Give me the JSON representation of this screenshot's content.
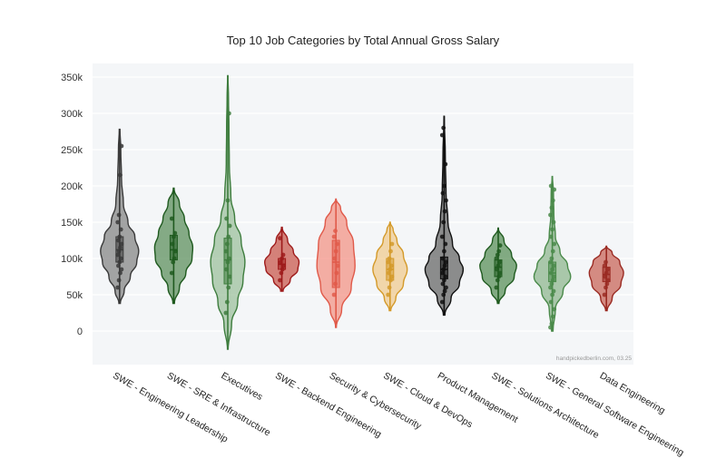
{
  "chart_data": {
    "type": "violin",
    "title": "Top 10 Job Categories by Total Annual Gross Salary",
    "xlabel": "",
    "ylabel": "",
    "ylim": [
      -45000,
      370000
    ],
    "yticks": [
      0,
      50000,
      100000,
      150000,
      200000,
      250000,
      300000,
      350000
    ],
    "ytick_labels": [
      "0",
      "50k",
      "100k",
      "150k",
      "200k",
      "250k",
      "300k",
      "350k"
    ],
    "grid": true,
    "legend": "none",
    "credit": "handpickedberlin.com, 03.25",
    "categories": [
      {
        "name": "SWE - Engineering Leadership",
        "color": "#3a3a3a",
        "fill": "#6f6f6f",
        "range": [
          38000,
          278000
        ],
        "q1": 95000,
        "median": 112000,
        "q3": 130000,
        "profile": [
          [
            38000,
            0.02
          ],
          [
            55000,
            0.12
          ],
          [
            75000,
            0.28
          ],
          [
            95000,
            0.45
          ],
          [
            110000,
            0.5
          ],
          [
            130000,
            0.4
          ],
          [
            150000,
            0.22
          ],
          [
            175000,
            0.1
          ],
          [
            210000,
            0.05
          ],
          [
            250000,
            0.03
          ],
          [
            278000,
            0.01
          ]
        ],
        "points": [
          60000,
          70000,
          80000,
          85000,
          90000,
          95000,
          100000,
          105000,
          110000,
          115000,
          120000,
          125000,
          130000,
          140000,
          150000,
          160000,
          215000,
          255000
        ]
      },
      {
        "name": "SWE - SRE & Infrastructure",
        "color": "#1f5a1f",
        "fill": "#3f7a3f",
        "range": [
          38000,
          197000
        ],
        "q1": 98000,
        "median": 112000,
        "q3": 132000,
        "profile": [
          [
            38000,
            0.02
          ],
          [
            60000,
            0.15
          ],
          [
            80000,
            0.32
          ],
          [
            100000,
            0.48
          ],
          [
            115000,
            0.5
          ],
          [
            135000,
            0.4
          ],
          [
            155000,
            0.28
          ],
          [
            175000,
            0.15
          ],
          [
            197000,
            0.01
          ]
        ],
        "points": [
          80000,
          95000,
          100000,
          110000,
          120000,
          130000,
          135000,
          155000
        ]
      },
      {
        "name": "Executives",
        "color": "#3e7d3e",
        "fill": "#8ab48a",
        "range": [
          -25000,
          352000
        ],
        "q1": 65000,
        "median": 98000,
        "q3": 128000,
        "profile": [
          [
            -25000,
            0.01
          ],
          [
            10000,
            0.1
          ],
          [
            40000,
            0.26
          ],
          [
            70000,
            0.4
          ],
          [
            95000,
            0.45
          ],
          [
            125000,
            0.35
          ],
          [
            155000,
            0.18
          ],
          [
            185000,
            0.08
          ],
          [
            230000,
            0.04
          ],
          [
            280000,
            0.03
          ],
          [
            320000,
            0.02
          ],
          [
            352000,
            0.005
          ]
        ],
        "points": [
          25000,
          40000,
          60000,
          75000,
          85000,
          95000,
          100000,
          110000,
          120000,
          130000,
          145000,
          155000,
          180000,
          300000
        ]
      },
      {
        "name": "SWE - Backend Engineering",
        "color": "#9e1a1a",
        "fill": "#c0392b",
        "range": [
          55000,
          143000
        ],
        "q1": 85000,
        "median": 92000,
        "q3": 100000,
        "profile": [
          [
            55000,
            0.03
          ],
          [
            70000,
            0.22
          ],
          [
            85000,
            0.42
          ],
          [
            95000,
            0.45
          ],
          [
            110000,
            0.3
          ],
          [
            125000,
            0.15
          ],
          [
            143000,
            0.01
          ]
        ],
        "points": [
          70000,
          80000,
          85000,
          90000,
          95000,
          100000,
          105000,
          128000
        ]
      },
      {
        "name": "Security & Cybersecurity",
        "color": "#e05a4a",
        "fill": "#f28070",
        "range": [
          5000,
          182000
        ],
        "q1": 60000,
        "median": 95000,
        "q3": 125000,
        "profile": [
          [
            5000,
            0.01
          ],
          [
            30000,
            0.15
          ],
          [
            60000,
            0.4
          ],
          [
            90000,
            0.5
          ],
          [
            120000,
            0.46
          ],
          [
            150000,
            0.28
          ],
          [
            170000,
            0.12
          ],
          [
            182000,
            0.005
          ]
        ],
        "points": [
          50000,
          65000,
          80000,
          90000,
          100000,
          110000,
          120000,
          130000,
          138000
        ]
      },
      {
        "name": "SWE - Cloud & DevOps",
        "color": "#d49a2a",
        "fill": "#efc27a",
        "range": [
          28000,
          150000
        ],
        "q1": 70000,
        "median": 85000,
        "q3": 100000,
        "profile": [
          [
            28000,
            0.02
          ],
          [
            45000,
            0.15
          ],
          [
            65000,
            0.35
          ],
          [
            85000,
            0.45
          ],
          [
            105000,
            0.35
          ],
          [
            125000,
            0.18
          ],
          [
            140000,
            0.08
          ],
          [
            150000,
            0.005
          ]
        ],
        "points": [
          50000,
          60000,
          70000,
          75000,
          80000,
          85000,
          90000,
          95000,
          100000,
          110000,
          120000
        ]
      },
      {
        "name": "Product Management",
        "color": "#111111",
        "fill": "#4a4a4a",
        "range": [
          22000,
          296000
        ],
        "q1": 72000,
        "median": 85000,
        "q3": 102000,
        "profile": [
          [
            22000,
            0.02
          ],
          [
            45000,
            0.18
          ],
          [
            65000,
            0.4
          ],
          [
            85000,
            0.5
          ],
          [
            100000,
            0.4
          ],
          [
            120000,
            0.22
          ],
          [
            150000,
            0.1
          ],
          [
            190000,
            0.05
          ],
          [
            240000,
            0.03
          ],
          [
            296000,
            0.005
          ]
        ],
        "points": [
          40000,
          50000,
          55000,
          60000,
          65000,
          70000,
          75000,
          80000,
          85000,
          90000,
          95000,
          100000,
          110000,
          120000,
          130000,
          150000,
          165000,
          180000,
          190000,
          200000,
          230000,
          270000,
          280000
        ]
      },
      {
        "name": "SWE - Solutions Architecture",
        "color": "#1f5a1f",
        "fill": "#3a7a3a",
        "range": [
          38000,
          142000
        ],
        "q1": 75000,
        "median": 88000,
        "q3": 98000,
        "profile": [
          [
            38000,
            0.02
          ],
          [
            55000,
            0.18
          ],
          [
            75000,
            0.42
          ],
          [
            90000,
            0.48
          ],
          [
            105000,
            0.35
          ],
          [
            125000,
            0.15
          ],
          [
            142000,
            0.005
          ]
        ],
        "points": [
          60000,
          70000,
          75000,
          80000,
          85000,
          90000,
          95000,
          100000,
          105000,
          110000,
          118000
        ]
      },
      {
        "name": "SWE - General Software Engineering",
        "color": "#4a8a4a",
        "fill": "#7aaa7a",
        "range": [
          0,
          213000
        ],
        "q1": 68000,
        "median": 80000,
        "q3": 95000,
        "profile": [
          [
            0,
            0.02
          ],
          [
            30000,
            0.08
          ],
          [
            55000,
            0.28
          ],
          [
            75000,
            0.48
          ],
          [
            90000,
            0.4
          ],
          [
            110000,
            0.2
          ],
          [
            130000,
            0.08
          ],
          [
            160000,
            0.04
          ],
          [
            190000,
            0.03
          ],
          [
            213000,
            0.005
          ]
        ],
        "points": [
          5000,
          10000,
          20000,
          30000,
          40000,
          50000,
          55000,
          60000,
          65000,
          70000,
          75000,
          80000,
          85000,
          90000,
          95000,
          100000,
          110000,
          120000,
          130000,
          140000,
          150000,
          160000,
          170000,
          180000,
          195000,
          200000
        ]
      },
      {
        "name": "Data Engineering",
        "color": "#9a2a22",
        "fill": "#c0483a",
        "range": [
          28000,
          117000
        ],
        "q1": 68000,
        "median": 78000,
        "q3": 88000,
        "profile": [
          [
            28000,
            0.02
          ],
          [
            45000,
            0.15
          ],
          [
            65000,
            0.38
          ],
          [
            80000,
            0.45
          ],
          [
            95000,
            0.35
          ],
          [
            108000,
            0.15
          ],
          [
            117000,
            0.005
          ]
        ],
        "points": [
          50000,
          60000,
          65000,
          70000,
          75000,
          80000,
          85000,
          90000,
          95000
        ]
      }
    ]
  }
}
